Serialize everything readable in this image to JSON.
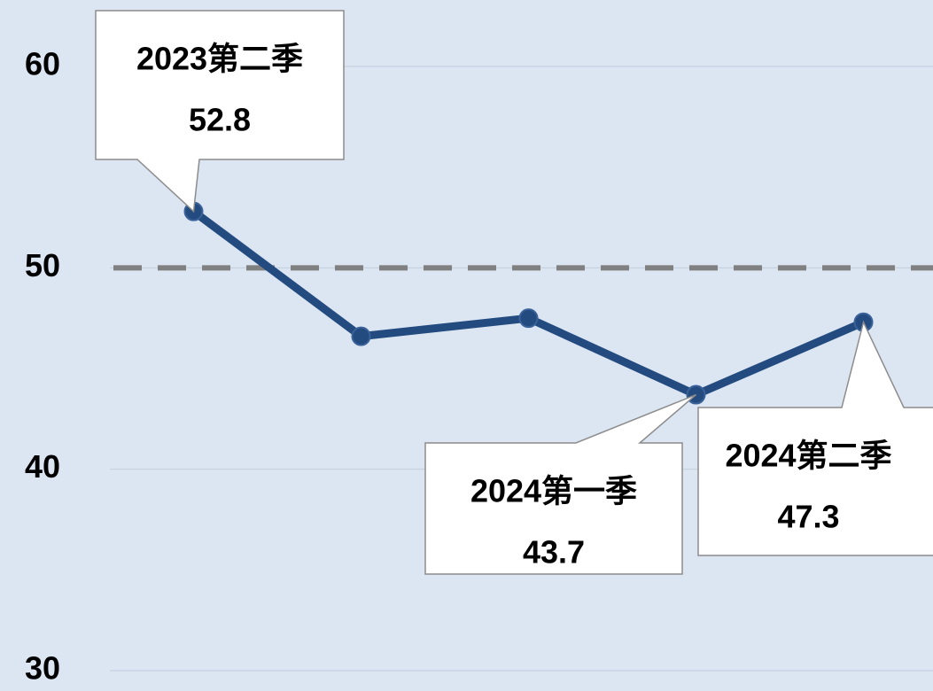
{
  "chart_data": {
    "type": "line",
    "categories": [
      "2023第二季",
      null,
      null,
      "2024第一季",
      "2024第二季"
    ],
    "series": [
      {
        "name": null,
        "color": "#234b80",
        "values": [
          52.8,
          46.6,
          47.5,
          43.7,
          47.3
        ]
      }
    ],
    "ylim": [
      30,
      60
    ],
    "yticks": [
      30,
      40,
      50,
      60
    ],
    "grid": true,
    "reference_line": 50
  }
}
